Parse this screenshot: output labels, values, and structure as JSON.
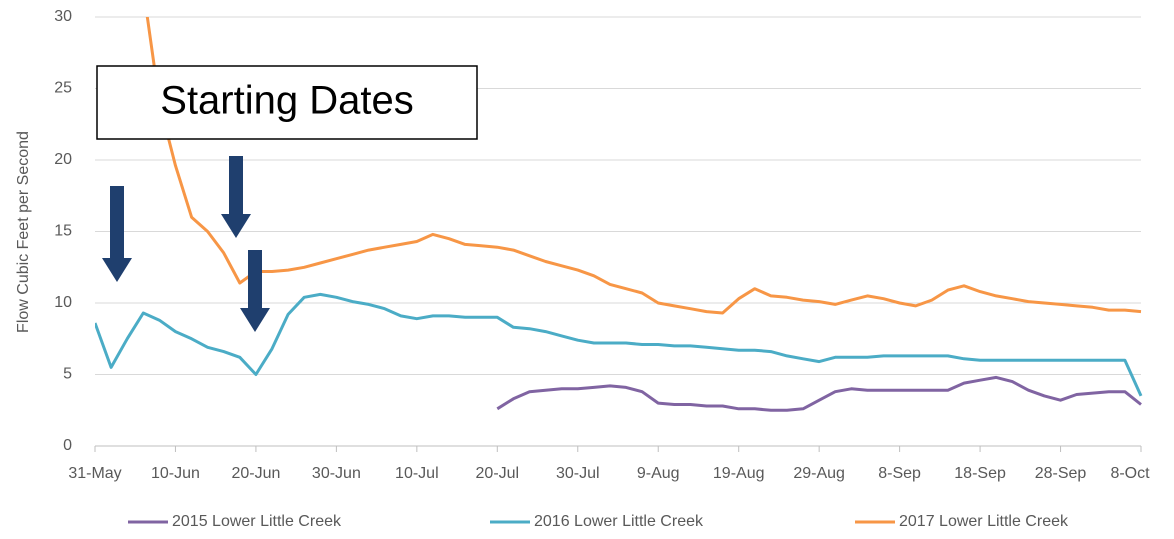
{
  "chart_data": {
    "type": "line",
    "y_label": "Flow Cubic Feet per Second",
    "annotation": "Starting Dates",
    "x": [
      "31-May",
      "2-Jun",
      "4-Jun",
      "6-Jun",
      "8-Jun",
      "10-Jun",
      "12-Jun",
      "14-Jun",
      "16-Jun",
      "18-Jun",
      "20-Jun",
      "22-Jun",
      "24-Jun",
      "26-Jun",
      "28-Jun",
      "30-Jun",
      "2-Jul",
      "4-Jul",
      "6-Jul",
      "8-Jul",
      "10-Jul",
      "12-Jul",
      "14-Jul",
      "16-Jul",
      "18-Jul",
      "20-Jul",
      "22-Jul",
      "24-Jul",
      "26-Jul",
      "28-Jul",
      "30-Jul",
      "1-Aug",
      "3-Aug",
      "5-Aug",
      "7-Aug",
      "9-Aug",
      "11-Aug",
      "13-Aug",
      "15-Aug",
      "17-Aug",
      "19-Aug",
      "21-Aug",
      "23-Aug",
      "25-Aug",
      "27-Aug",
      "29-Aug",
      "31-Aug",
      "2-Sep",
      "4-Sep",
      "6-Sep",
      "8-Sep",
      "10-Sep",
      "12-Sep",
      "14-Sep",
      "16-Sep",
      "18-Sep",
      "20-Sep",
      "22-Sep",
      "24-Sep",
      "26-Sep",
      "28-Sep",
      "30-Sep",
      "2-Oct",
      "4-Oct",
      "6-Oct",
      "8-Oct"
    ],
    "xticks": [
      "31-May",
      "10-Jun",
      "20-Jun",
      "30-Jun",
      "10-Jul",
      "20-Jul",
      "30-Jul",
      "9-Aug",
      "19-Aug",
      "29-Aug",
      "8-Sep",
      "18-Sep",
      "28-Sep",
      "8-Oct"
    ],
    "ylim": [
      0,
      30
    ],
    "yticks": [
      0,
      5,
      10,
      15,
      20,
      25,
      30
    ],
    "grid": true,
    "legend": "bottom",
    "series": [
      {
        "name": "2015 Lower Little Creek",
        "color": "#8064a2",
        "values": [
          null,
          null,
          null,
          null,
          null,
          null,
          null,
          null,
          null,
          null,
          null,
          null,
          null,
          null,
          null,
          null,
          null,
          null,
          null,
          null,
          null,
          null,
          null,
          null,
          null,
          2.6,
          3.3,
          3.8,
          3.9,
          4.0,
          4.0,
          4.1,
          4.2,
          4.1,
          3.8,
          3.0,
          2.9,
          2.9,
          2.8,
          2.8,
          2.6,
          2.6,
          2.5,
          2.5,
          2.6,
          3.2,
          3.8,
          4.0,
          3.9,
          3.9,
          3.9,
          3.9,
          3.9,
          3.9,
          4.4,
          4.6,
          4.8,
          4.5,
          3.9,
          3.5,
          3.2,
          3.6,
          3.7,
          3.8,
          3.8,
          2.9
        ]
      },
      {
        "name": "2016 Lower Little Creek",
        "color": "#4bacc6",
        "values": [
          8.6,
          5.5,
          7.5,
          9.3,
          8.8,
          8.0,
          7.5,
          6.9,
          6.6,
          6.2,
          5.0,
          6.8,
          9.2,
          10.4,
          10.6,
          10.4,
          10.1,
          9.9,
          9.6,
          9.1,
          8.9,
          9.1,
          9.1,
          9.0,
          9.0,
          9.0,
          8.3,
          8.2,
          8.0,
          7.7,
          7.4,
          7.2,
          7.2,
          7.2,
          7.1,
          7.1,
          7.0,
          7.0,
          6.9,
          6.8,
          6.7,
          6.7,
          6.6,
          6.3,
          6.1,
          5.9,
          6.2,
          6.2,
          6.2,
          6.3,
          6.3,
          6.3,
          6.3,
          6.3,
          6.1,
          6.0,
          6.0,
          6.0,
          6.0,
          6.0,
          6.0,
          6.0,
          6.0,
          6.0,
          6.0,
          3.5
        ]
      },
      {
        "name": "2017 Lower Little Creek",
        "color": "#f79646",
        "values": [
          null,
          null,
          null,
          32,
          24,
          19.6,
          16,
          15,
          13.5,
          11.4,
          12.2,
          12.2,
          12.3,
          12.5,
          12.8,
          13.1,
          13.4,
          13.7,
          13.9,
          14.1,
          14.3,
          14.8,
          14.5,
          14.1,
          14.0,
          13.9,
          13.7,
          13.3,
          12.9,
          12.6,
          12.3,
          11.9,
          11.3,
          11.0,
          10.7,
          10.0,
          9.8,
          9.6,
          9.4,
          9.3,
          10.3,
          11.0,
          10.5,
          10.4,
          10.2,
          10.1,
          9.9,
          10.2,
          10.5,
          10.3,
          10.0,
          9.8,
          10.2,
          10.9,
          11.2,
          10.8,
          10.5,
          10.3,
          10.1,
          10.0,
          9.9,
          9.8,
          9.7,
          9.5,
          9.5,
          9.4
        ]
      }
    ]
  }
}
